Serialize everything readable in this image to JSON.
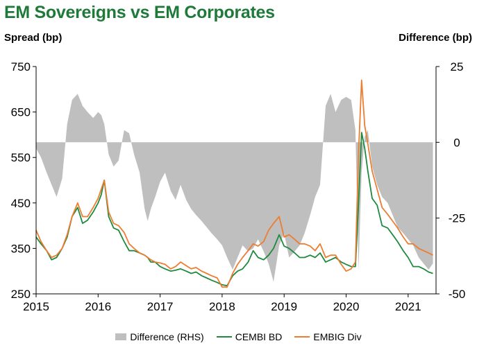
{
  "chart_data": {
    "type": "line",
    "title": "EM Sovereigns vs EM Corporates",
    "ylabel_left": "Spread (bp)",
    "ylabel_right": "Difference (bp)",
    "ylim_left": [
      250,
      750
    ],
    "yticks_left": [
      250,
      350,
      450,
      550,
      650,
      750
    ],
    "ylim_right": [
      -50,
      25
    ],
    "yticks_right": [
      -50,
      -25,
      0,
      25
    ],
    "xlim": [
      2015,
      2021.45
    ],
    "xticks": [
      2015,
      2016,
      2017,
      2018,
      2019,
      2020,
      2021
    ],
    "xticklabels": [
      "2015",
      "2016",
      "2017",
      "2018",
      "2019",
      "2020",
      "2021"
    ],
    "grid": false,
    "legend_position": "bottom",
    "x": [
      2015.0,
      2015.08,
      2015.17,
      2015.25,
      2015.33,
      2015.42,
      2015.5,
      2015.58,
      2015.67,
      2015.75,
      2015.83,
      2015.92,
      2016.0,
      2016.05,
      2016.1,
      2016.17,
      2016.25,
      2016.33,
      2016.42,
      2016.5,
      2016.58,
      2016.67,
      2016.75,
      2016.8,
      2016.85,
      2016.92,
      2017.0,
      2017.08,
      2017.17,
      2017.25,
      2017.33,
      2017.42,
      2017.5,
      2017.58,
      2017.67,
      2017.75,
      2017.83,
      2017.92,
      2018.0,
      2018.08,
      2018.17,
      2018.25,
      2018.33,
      2018.42,
      2018.5,
      2018.58,
      2018.67,
      2018.75,
      2018.83,
      2018.92,
      2019.0,
      2019.08,
      2019.17,
      2019.25,
      2019.33,
      2019.42,
      2019.5,
      2019.58,
      2019.67,
      2019.75,
      2019.83,
      2019.92,
      2020.0,
      2020.08,
      2020.15,
      2020.2,
      2020.25,
      2020.3,
      2020.35,
      2020.42,
      2020.5,
      2020.58,
      2020.67,
      2020.75,
      2020.83,
      2020.92,
      2021.0,
      2021.08,
      2021.17,
      2021.25,
      2021.33,
      2021.4
    ],
    "series": [
      {
        "name": "Difference (RHS)",
        "type": "area",
        "axis": "right",
        "color": "#bfbfbf",
        "values": [
          -2,
          -5,
          -10,
          -14,
          -18,
          -12,
          6,
          14,
          16,
          12,
          10,
          8,
          10,
          9,
          6,
          -4,
          -8,
          -6,
          4,
          3,
          -4,
          -10,
          -22,
          -26,
          -22,
          -18,
          -13,
          -10,
          -16,
          -19,
          -14,
          -19,
          -22,
          -24,
          -26,
          -28,
          -30,
          -32,
          -34,
          -38,
          -42,
          -38,
          -34,
          -36,
          -35,
          -32,
          -36,
          -40,
          -46,
          -34,
          -30,
          -38,
          -36,
          -34,
          -30,
          -24,
          -18,
          -14,
          12,
          16,
          10,
          14,
          15,
          14,
          4,
          -42,
          -10,
          2,
          4,
          -8,
          -14,
          -18,
          -20,
          -24,
          -28,
          -30,
          -32,
          -34,
          -38,
          -40,
          -42,
          -40
        ]
      },
      {
        "name": "CEMBI BD",
        "type": "line",
        "axis": "left",
        "color": "#1e8a3e",
        "values": [
          375,
          360,
          345,
          325,
          330,
          350,
          375,
          420,
          440,
          405,
          412,
          430,
          450,
          468,
          500,
          420,
          395,
          390,
          365,
          345,
          345,
          340,
          335,
          330,
          320,
          320,
          310,
          305,
          300,
          302,
          305,
          300,
          295,
          298,
          290,
          285,
          280,
          275,
          270,
          268,
          290,
          300,
          305,
          320,
          345,
          330,
          325,
          335,
          350,
          380,
          355,
          350,
          340,
          330,
          330,
          335,
          330,
          340,
          320,
          325,
          330,
          320,
          315,
          310,
          310,
          450,
          605,
          570,
          520,
          460,
          445,
          400,
          395,
          380,
          365,
          345,
          330,
          310,
          310,
          305,
          298,
          295
        ]
      },
      {
        "name": "EMBIG Div",
        "type": "line",
        "axis": "left",
        "color": "#ed7d31",
        "values": [
          390,
          365,
          345,
          330,
          335,
          350,
          380,
          420,
          450,
          420,
          420,
          440,
          460,
          480,
          500,
          430,
          405,
          400,
          385,
          360,
          350,
          340,
          335,
          330,
          325,
          320,
          318,
          315,
          305,
          310,
          320,
          312,
          305,
          308,
          300,
          295,
          290,
          285,
          265,
          265,
          295,
          315,
          330,
          345,
          360,
          355,
          365,
          390,
          405,
          420,
          375,
          380,
          370,
          360,
          360,
          355,
          345,
          360,
          330,
          335,
          335,
          315,
          300,
          305,
          320,
          560,
          720,
          620,
          580,
          520,
          480,
          440,
          425,
          410,
          395,
          375,
          360,
          360,
          350,
          345,
          340,
          335
        ]
      }
    ]
  },
  "legend": {
    "difference": "Difference (RHS)",
    "cembi": "CEMBI BD",
    "embig": "EMBIG Div"
  }
}
